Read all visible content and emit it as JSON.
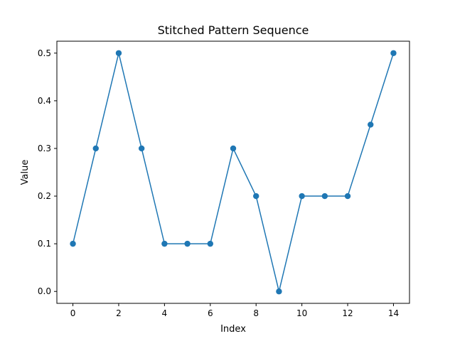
{
  "chart_data": {
    "type": "line",
    "title": "Stitched Pattern Sequence",
    "xlabel": "Index",
    "ylabel": "Value",
    "x": [
      0,
      1,
      2,
      3,
      4,
      5,
      6,
      7,
      8,
      9,
      10,
      11,
      12,
      13,
      14
    ],
    "series": [
      {
        "values": [
          0.1,
          0.3,
          0.5,
          0.3,
          0.1,
          0.1,
          0.1,
          0.3,
          0.2,
          0.0,
          0.2,
          0.2,
          0.2,
          0.35,
          0.5
        ],
        "color": "#1f77b4",
        "marker": "circle"
      }
    ],
    "xlim": [
      -0.7,
      14.7
    ],
    "ylim": [
      -0.025,
      0.525
    ],
    "xticks": [
      0,
      2,
      4,
      6,
      8,
      10,
      12,
      14
    ],
    "xtick_labels": [
      "0",
      "2",
      "4",
      "6",
      "8",
      "10",
      "12",
      "14"
    ],
    "yticks": [
      0.0,
      0.1,
      0.2,
      0.3,
      0.4,
      0.5
    ],
    "ytick_labels": [
      "0.0",
      "0.1",
      "0.2",
      "0.3",
      "0.4",
      "0.5"
    ],
    "grid": false,
    "legend": "none"
  }
}
